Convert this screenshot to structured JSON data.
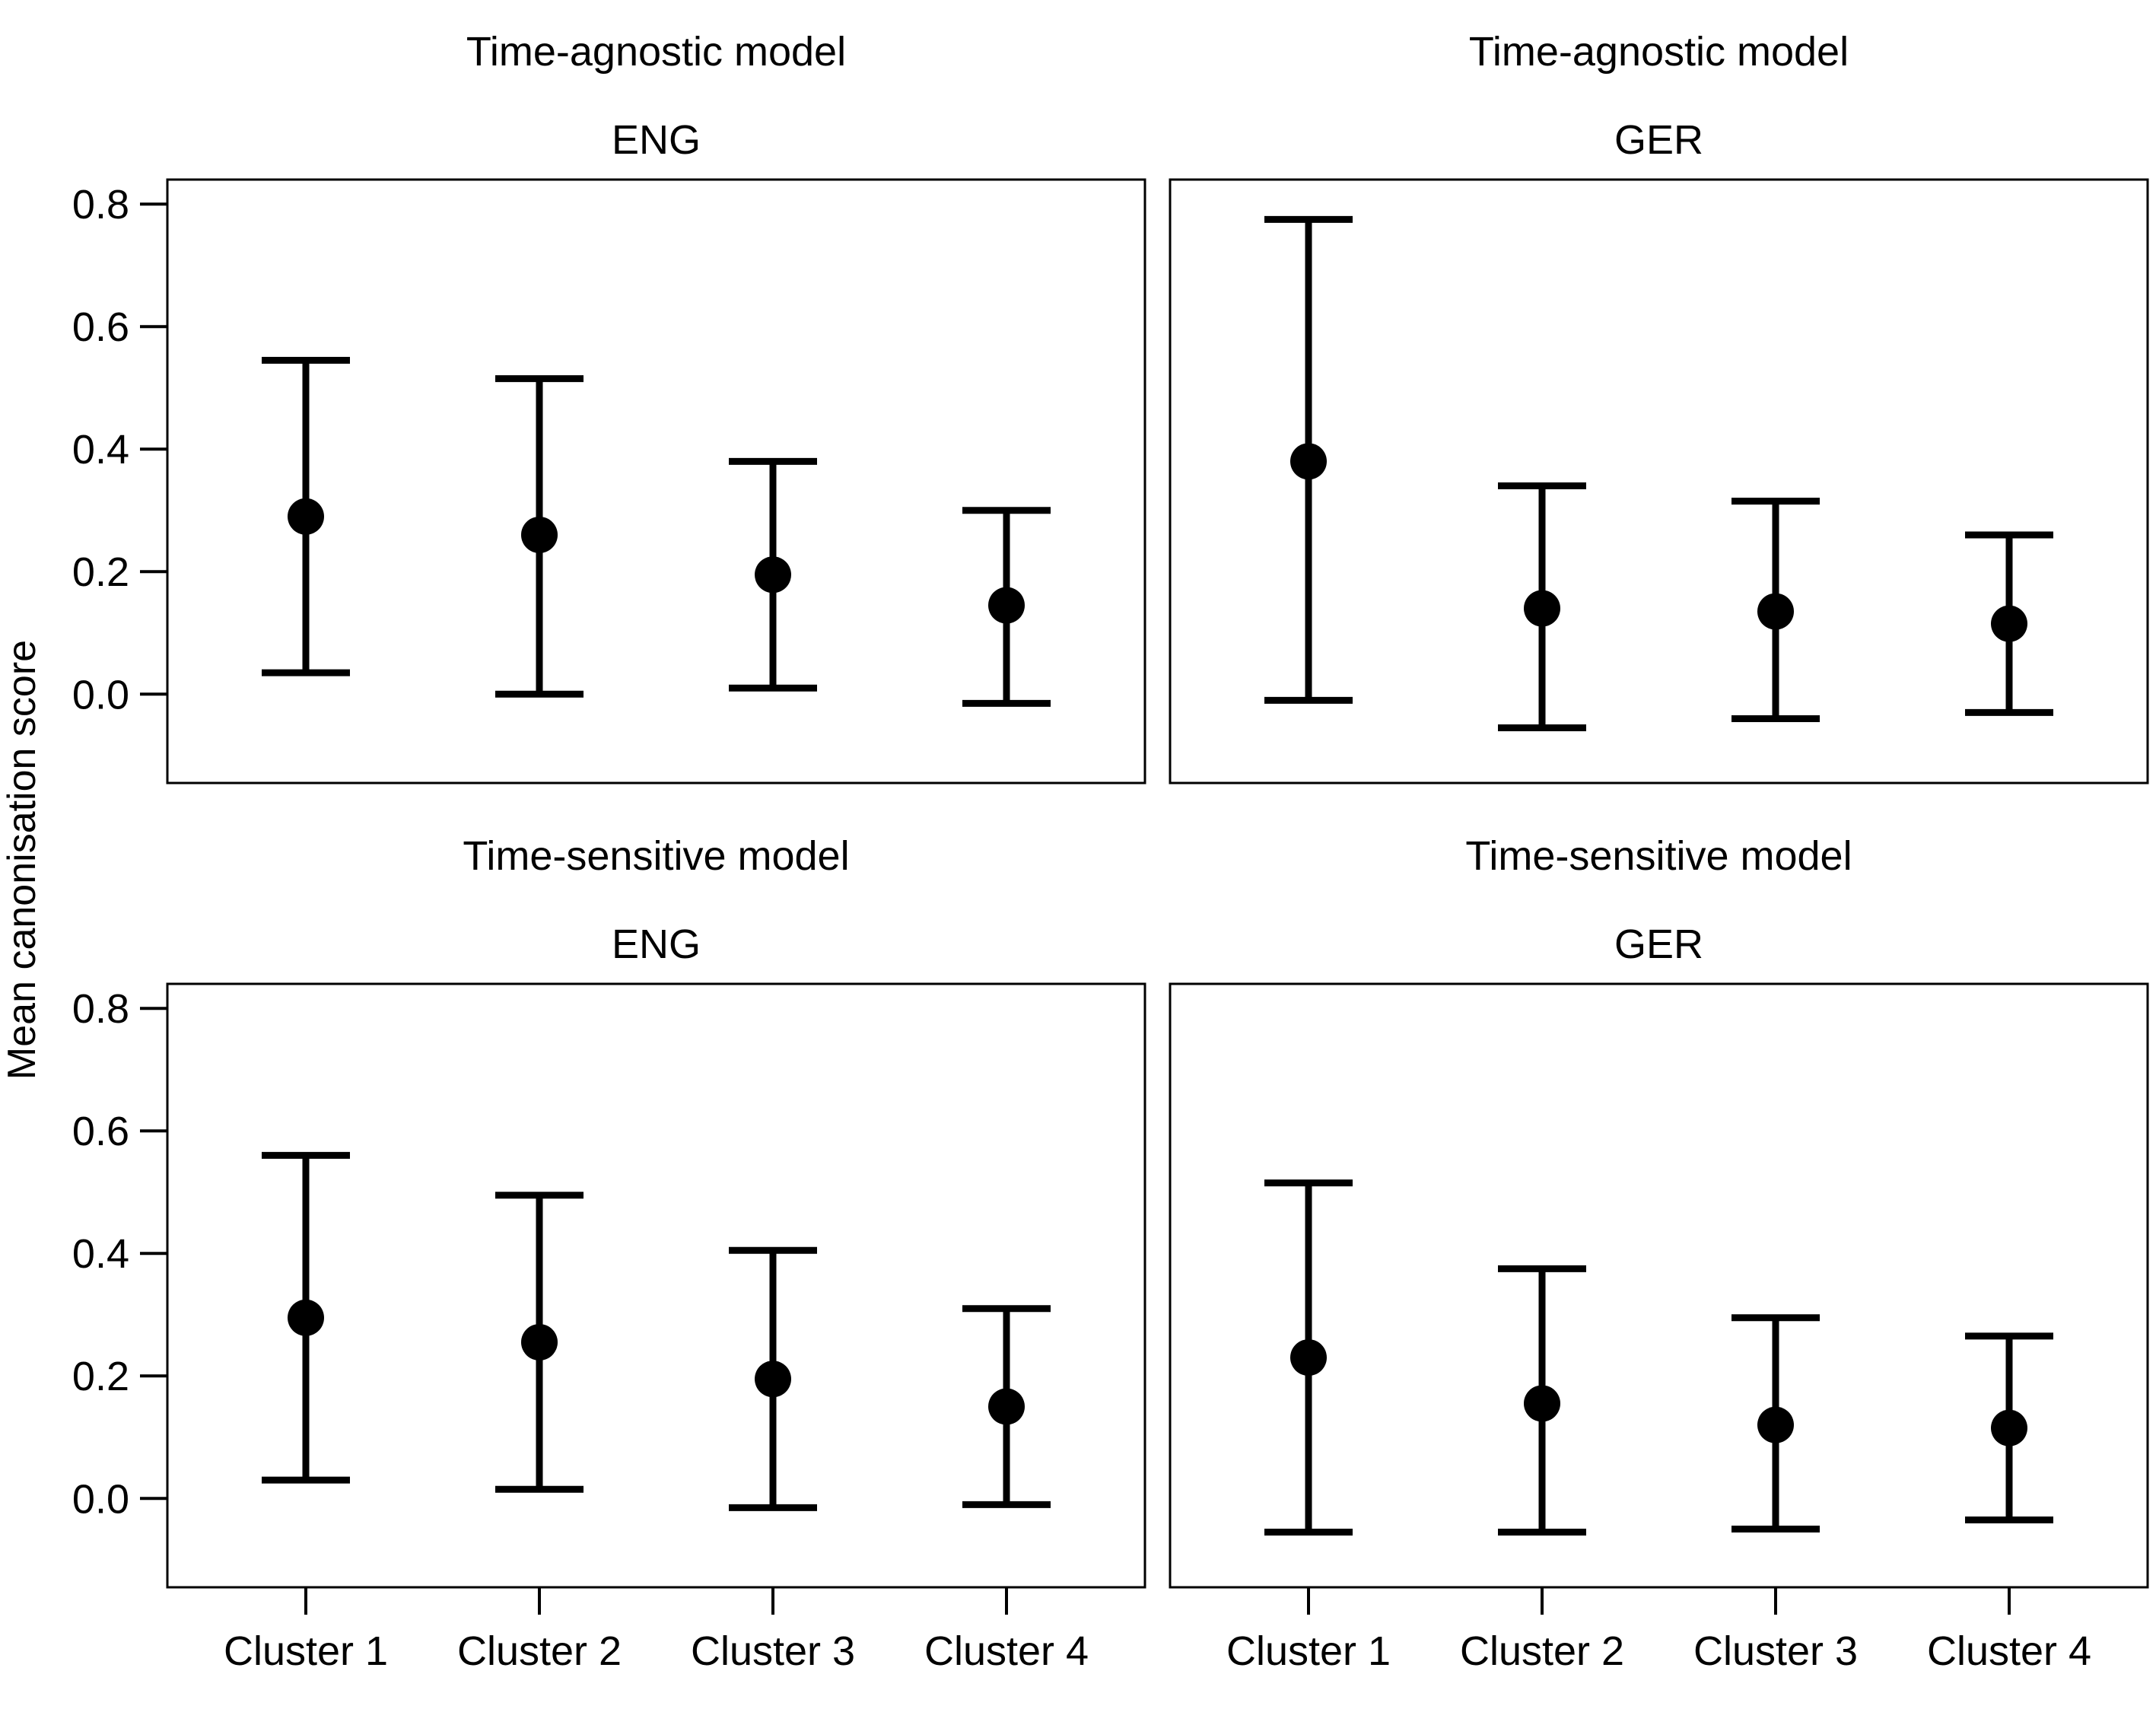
{
  "figure": {
    "ylabel": "Mean canonisation score"
  },
  "chart_data": [
    {
      "type": "scatter",
      "title": "Time-agnostic model",
      "subtitle": "ENG",
      "categories": [
        "Cluster 1",
        "Cluster 2",
        "Cluster 3",
        "Cluster 4"
      ],
      "values": [
        0.29,
        0.26,
        0.195,
        0.145
      ],
      "lower": [
        0.035,
        0.0,
        0.01,
        -0.015
      ],
      "upper": [
        0.545,
        0.515,
        0.38,
        0.3
      ],
      "yticks": [
        "0.0",
        "0.2",
        "0.4",
        "0.6",
        "0.8"
      ],
      "ylim": [
        -0.145,
        0.84
      ],
      "show_x_axis": false,
      "show_y_axis": true
    },
    {
      "type": "scatter",
      "title": "Time-agnostic model",
      "subtitle": "GER",
      "categories": [
        "Cluster 1",
        "Cluster 2",
        "Cluster 3",
        "Cluster 4"
      ],
      "values": [
        0.38,
        0.14,
        0.135,
        0.115
      ],
      "lower": [
        -0.01,
        -0.055,
        -0.04,
        -0.03
      ],
      "upper": [
        0.775,
        0.34,
        0.315,
        0.26
      ],
      "yticks": [
        "0.0",
        "0.2",
        "0.4",
        "0.6",
        "0.8"
      ],
      "ylim": [
        -0.145,
        0.84
      ],
      "show_x_axis": false,
      "show_y_axis": false
    },
    {
      "type": "scatter",
      "title": "Time-sensitive model",
      "subtitle": "ENG",
      "categories": [
        "Cluster 1",
        "Cluster 2",
        "Cluster 3",
        "Cluster 4"
      ],
      "values": [
        0.295,
        0.255,
        0.195,
        0.15
      ],
      "lower": [
        0.03,
        0.015,
        -0.015,
        -0.01
      ],
      "upper": [
        0.56,
        0.495,
        0.405,
        0.31
      ],
      "yticks": [
        "0.0",
        "0.2",
        "0.4",
        "0.6",
        "0.8"
      ],
      "ylim": [
        -0.145,
        0.84
      ],
      "show_x_axis": true,
      "show_y_axis": true
    },
    {
      "type": "scatter",
      "title": "Time-sensitive model",
      "subtitle": "GER",
      "categories": [
        "Cluster 1",
        "Cluster 2",
        "Cluster 3",
        "Cluster 4"
      ],
      "values": [
        0.23,
        0.155,
        0.12,
        0.115
      ],
      "lower": [
        -0.055,
        -0.055,
        -0.05,
        -0.035
      ],
      "upper": [
        0.515,
        0.375,
        0.295,
        0.265
      ],
      "yticks": [
        "0.0",
        "0.2",
        "0.4",
        "0.6",
        "0.8"
      ],
      "ylim": [
        -0.145,
        0.84
      ],
      "show_x_axis": true,
      "show_y_axis": false
    }
  ]
}
